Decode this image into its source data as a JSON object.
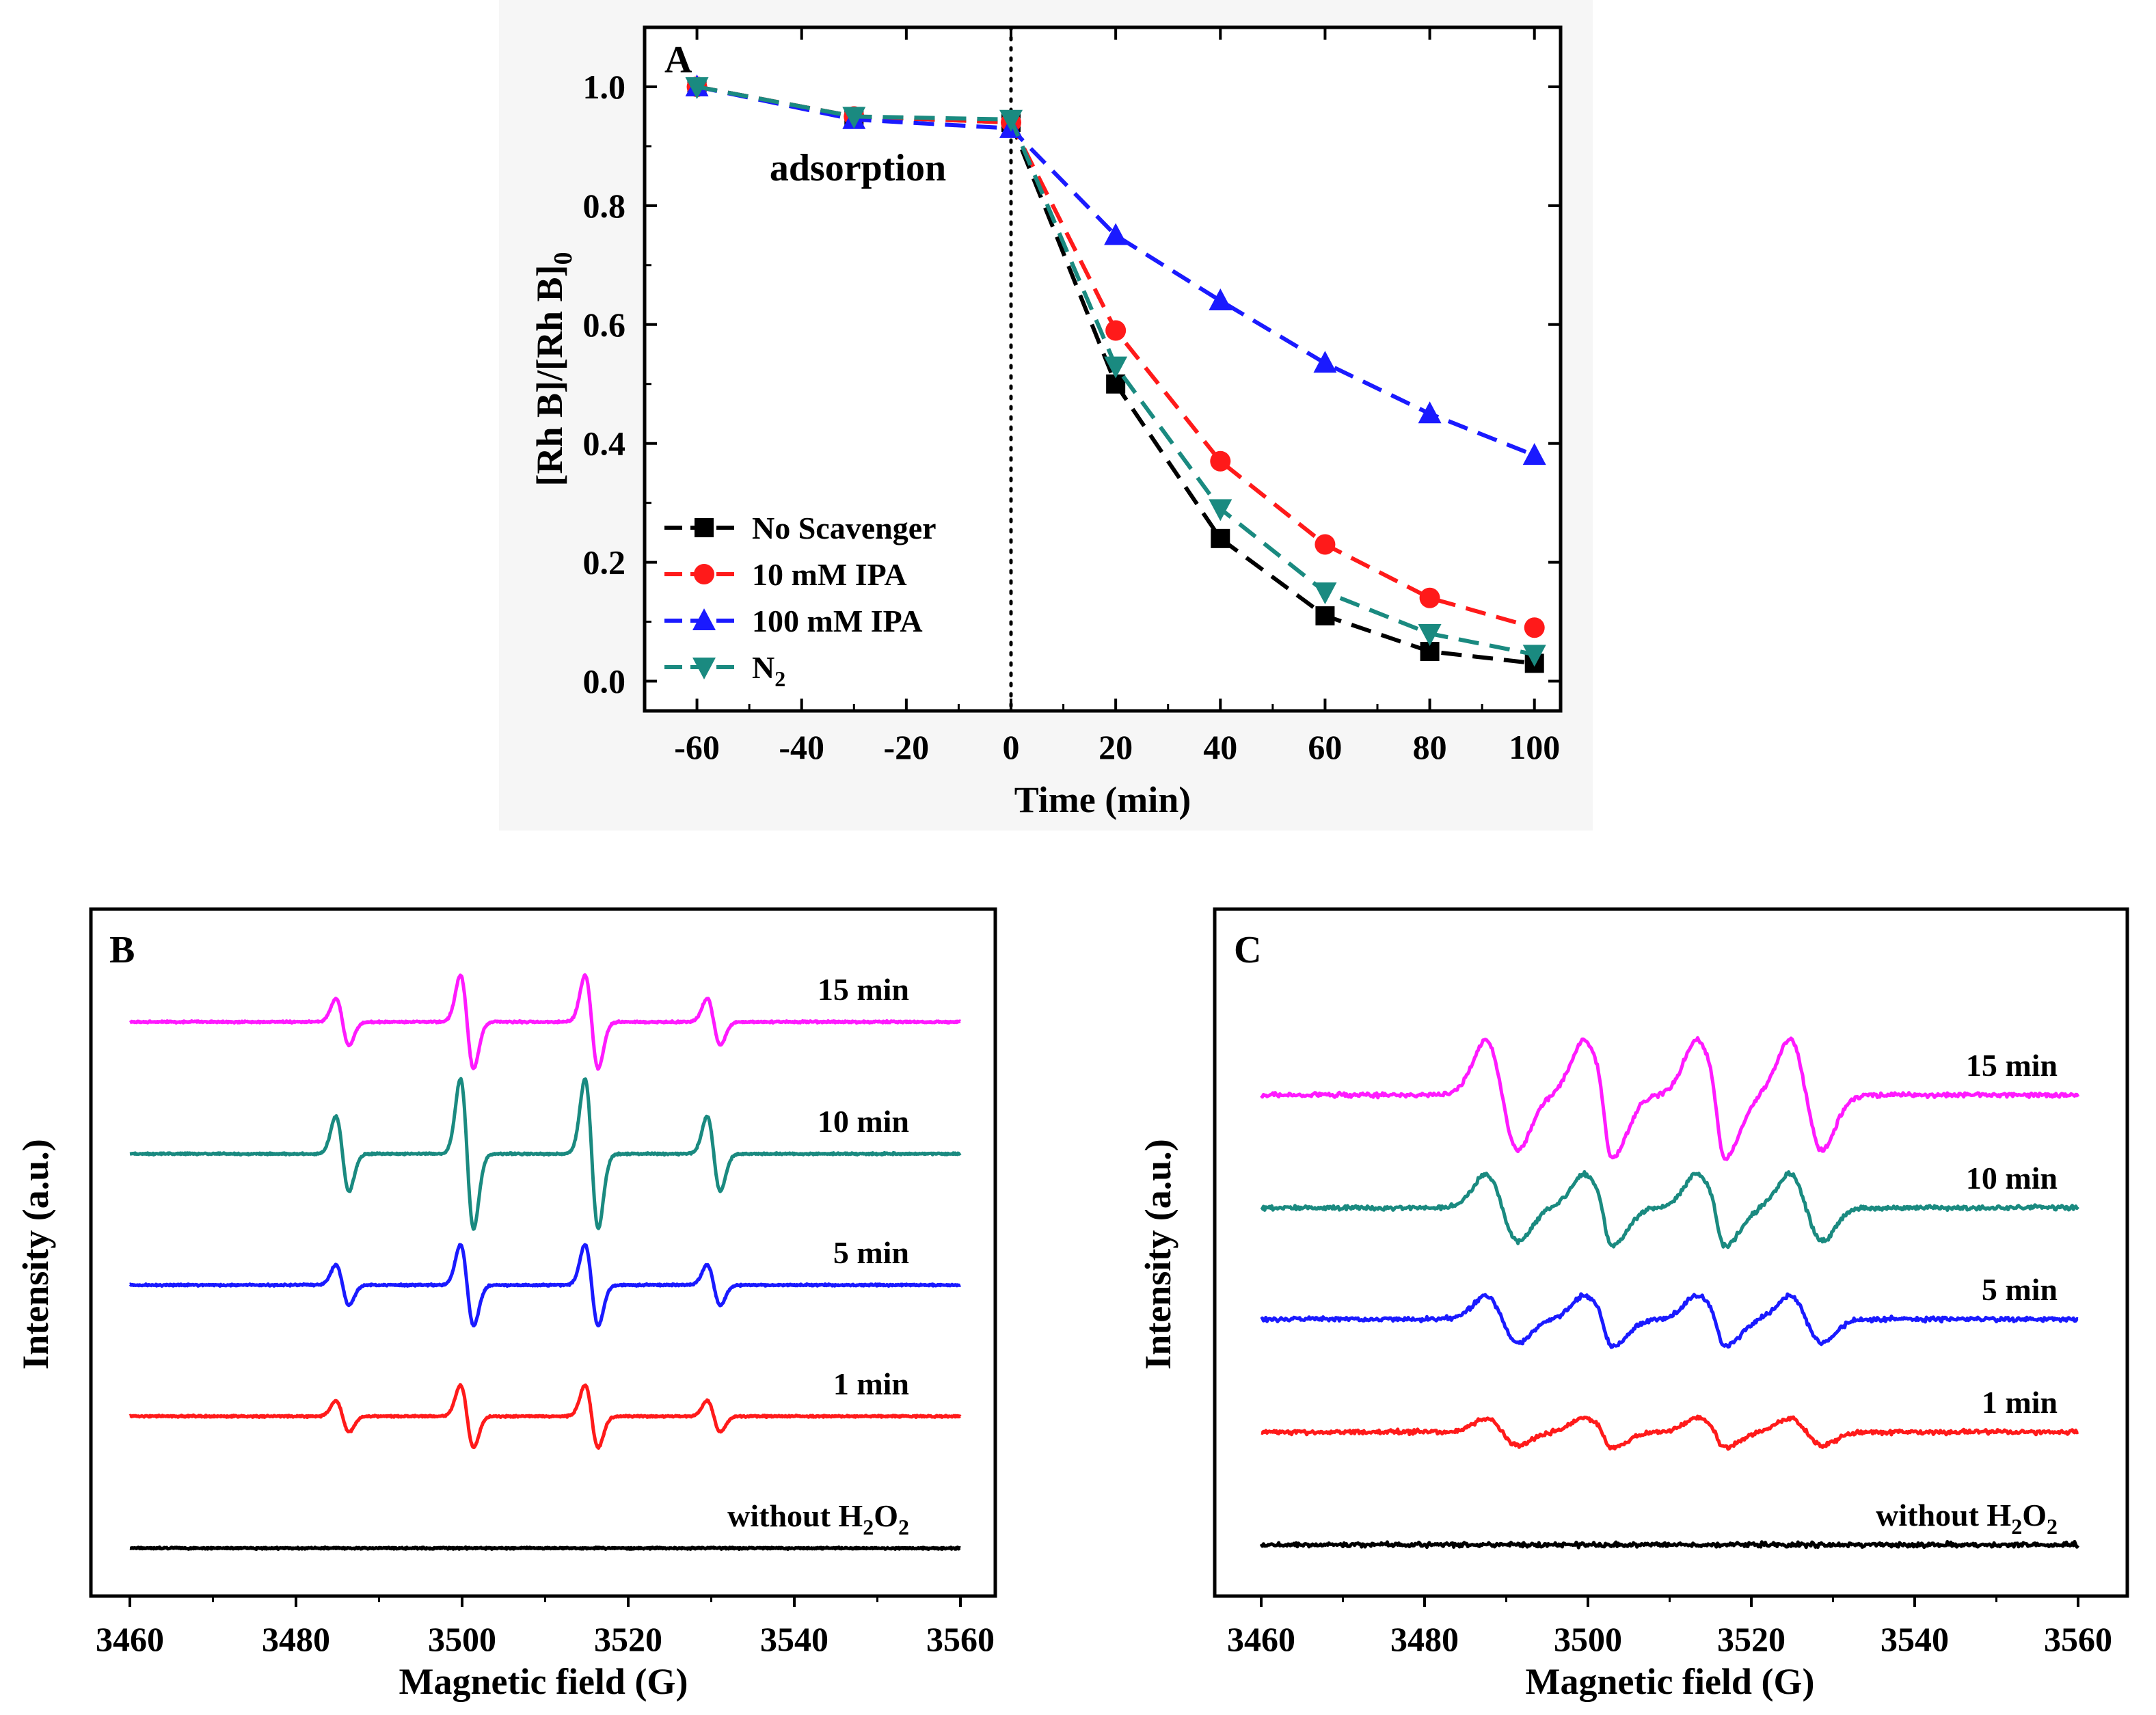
{
  "chart_data": [
    {
      "panel": "A",
      "type": "line",
      "xlabel": "Time (min)",
      "ylabel": "[Rh B]/[Rh B]",
      "ylabel_subscript": "0",
      "xlim": [
        -70,
        105
      ],
      "ylim": [
        -0.05,
        1.1
      ],
      "x_ticks": [
        -60,
        -40,
        -20,
        0,
        20,
        40,
        60,
        80,
        100
      ],
      "y_ticks": [
        0.0,
        0.2,
        0.4,
        0.6,
        0.8,
        1.0
      ],
      "x_tick_labels": [
        "-60",
        "-40",
        "-20",
        "0",
        "20",
        "40",
        "60",
        "80",
        "100"
      ],
      "y_tick_labels": [
        "0.0",
        "0.2",
        "0.4",
        "0.6",
        "0.8",
        "1.0"
      ],
      "annotation": "adsorption",
      "vertical_marker_x": 0,
      "x": [
        -60,
        -30,
        0,
        20,
        40,
        60,
        80,
        100
      ],
      "series": [
        {
          "name": "No Scavenger",
          "color": "#000000",
          "marker": "square",
          "values": [
            1.0,
            0.95,
            0.94,
            0.5,
            0.24,
            0.11,
            0.05,
            0.03
          ]
        },
        {
          "name": "10 mM IPA",
          "color": "#ff1a1a",
          "marker": "circle",
          "values": [
            1.0,
            0.95,
            0.94,
            0.59,
            0.37,
            0.23,
            0.14,
            0.09
          ]
        },
        {
          "name": "100 mM IPA",
          "color": "#1a1aff",
          "marker": "triangle-up",
          "values": [
            1.0,
            0.945,
            0.93,
            0.75,
            0.64,
            0.535,
            0.45,
            0.38
          ]
        },
        {
          "name": "N",
          "name_subscript": "2",
          "color": "#1a8a80",
          "marker": "triangle-down",
          "values": [
            1.0,
            0.95,
            0.945,
            0.53,
            0.29,
            0.15,
            0.08,
            0.045
          ]
        }
      ]
    },
    {
      "panel": "B",
      "type": "line",
      "xlabel": "Magnetic field (G)",
      "ylabel": "Intensity (a.u.)",
      "xlim": [
        3460,
        3560
      ],
      "x_ticks": [
        3460,
        3480,
        3500,
        3520,
        3540,
        3560
      ],
      "x_tick_labels": [
        "3460",
        "3480",
        "3500",
        "3520",
        "3540",
        "3560"
      ],
      "peak_centers": [
        3485.6,
        3500.6,
        3515.6,
        3530.3
      ],
      "line_width_g": 0.8,
      "relative_intensities": [
        1,
        2,
        2,
        1
      ],
      "series": [
        {
          "name": "15 min",
          "color": "#ff1aff",
          "amplitude": 0.75
        },
        {
          "name": "10 min",
          "color": "#1a8a80",
          "amplitude": 1.2
        },
        {
          "name": "5 min",
          "color": "#1a1aff",
          "amplitude": 0.65
        },
        {
          "name": "1 min",
          "color": "#ff1a1a",
          "amplitude": 0.5
        },
        {
          "name": "without H",
          "name_subscript": "2",
          "name_suffix": "O",
          "name_subscript2": "2",
          "color": "#000000",
          "amplitude": 0
        }
      ]
    },
    {
      "panel": "C",
      "type": "line",
      "xlabel": "Magnetic field (G)",
      "ylabel": "Intensity (a.u.)",
      "xlim": [
        3460,
        3560
      ],
      "x_ticks": [
        3460,
        3480,
        3500,
        3520,
        3540,
        3560
      ],
      "x_tick_labels": [
        "3460",
        "3480",
        "3500",
        "3520",
        "3540",
        "3560"
      ],
      "peak_centers": [
        3489.5,
        3501.5,
        3515.3,
        3526.7
      ],
      "shoulder_centers": [
        3502.0,
        3515.8
      ],
      "line_width_g": 2.0,
      "series": [
        {
          "name": "15 min",
          "color": "#ff1aff",
          "amplitude": 1.4
        },
        {
          "name": "10 min",
          "color": "#1a8a80",
          "amplitude": 0.85
        },
        {
          "name": "5 min",
          "color": "#1a1aff",
          "amplitude": 0.6
        },
        {
          "name": "1 min",
          "color": "#ff1a1a",
          "amplitude": 0.35
        },
        {
          "name": "without H",
          "name_subscript": "2",
          "name_suffix": "O",
          "name_subscript2": "2",
          "color": "#000000",
          "amplitude": 0
        }
      ]
    }
  ]
}
